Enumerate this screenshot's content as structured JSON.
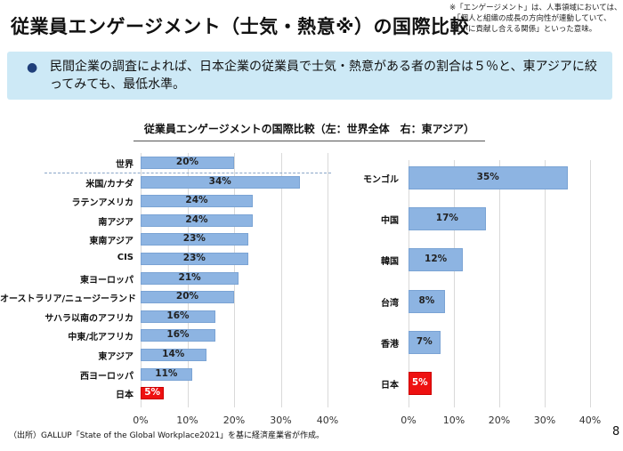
{
  "title": "従業員エンゲージメント（士気・熱意※）の国際比較",
  "note": [
    "※「エンゲージメント」は、人事領域においては、",
    "「個人と組織の成長の方向性が連動していて、",
    "互いに貢献し合える関係」といった意味。"
  ],
  "summary": {
    "bullet": "●",
    "text": "民間企業の調査によれば、日本企業の従業員で士気・熱意がある者の割合は５％と、東アジアに絞ってみても、最低水準。"
  },
  "footer": "（出所）GALLUP「State of the Global Workplace2021」を基に経済産業省が作成。",
  "page_number": "8",
  "colors": {
    "bar": "#8db4e2",
    "japan": "#ee1111",
    "box": "#cde9f6"
  },
  "chart_data": [
    {
      "type": "bar",
      "orientation": "horizontal",
      "title": "従業員エンゲージメントの国際比較（左：世界全体　右：東アジア）",
      "categories": [
        "世界",
        "米国/カナダ",
        "ラテンアメリカ",
        "南アジア",
        "東南アジア",
        "CIS",
        "東ヨーロッパ",
        "オーストラリア/ニュージーランド",
        "サハラ以南のアフリカ",
        "中東/北アフリカ",
        "東アジア",
        "西ヨーロッパ",
        "日本"
      ],
      "values": [
        20,
        34,
        24,
        24,
        23,
        23,
        21,
        20,
        16,
        16,
        14,
        11,
        5
      ],
      "labels": [
        "20%",
        "34%",
        "24%",
        "24%",
        "23%",
        "23%",
        "21%",
        "20%",
        "16%",
        "16%",
        "14%",
        "11%",
        "5%"
      ],
      "xlim": [
        0,
        40
      ],
      "xticks": [
        "0%",
        "10%",
        "20%",
        "30%",
        "40%"
      ],
      "grid": true,
      "highlight": "日本"
    },
    {
      "type": "bar",
      "orientation": "horizontal",
      "categories": [
        "モンゴル",
        "中国",
        "韓国",
        "台湾",
        "香港",
        "日本"
      ],
      "values": [
        35,
        17,
        12,
        8,
        7,
        5
      ],
      "labels": [
        "35%",
        "17%",
        "12%",
        "8%",
        "7%",
        "5%"
      ],
      "xlim": [
        0,
        40
      ],
      "xticks": [
        "0%",
        "10%",
        "20%",
        "30%",
        "40%"
      ],
      "grid": true,
      "highlight": "日本"
    }
  ]
}
